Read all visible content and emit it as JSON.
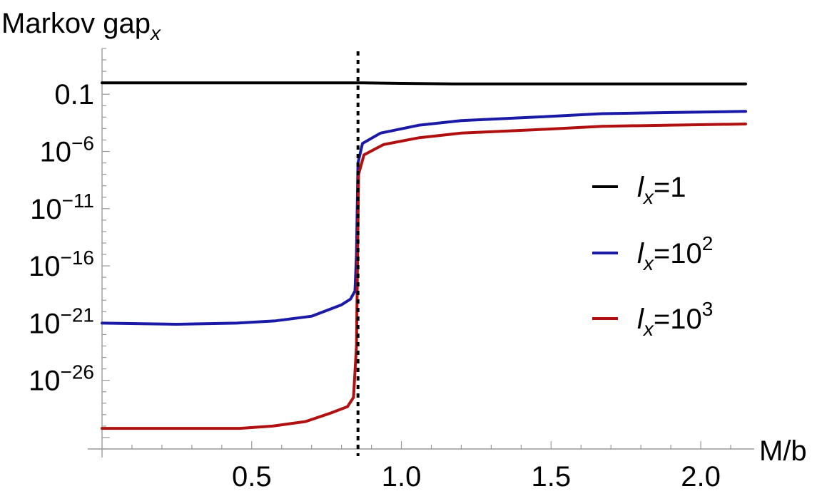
{
  "chart_data": {
    "type": "line",
    "title": "",
    "ylabel": "Markov gap",
    "ylabel_subscript": "x",
    "xlabel": "M/b",
    "y_scale": "log10",
    "x_range": [
      0.0,
      2.15
    ],
    "ylim_log10": [
      -32,
      3
    ],
    "x_ticks": [
      {
        "value": 0.5,
        "label": "0.5"
      },
      {
        "value": 1.0,
        "label": "1.0"
      },
      {
        "value": 1.5,
        "label": "1.5"
      },
      {
        "value": 2.0,
        "label": "2.0"
      }
    ],
    "y_ticks": [
      {
        "log10": -1,
        "mantissa": "0.1",
        "exponent": ""
      },
      {
        "log10": -6,
        "mantissa": "10",
        "exponent": "−6"
      },
      {
        "log10": -11,
        "mantissa": "10",
        "exponent": "−11"
      },
      {
        "log10": -16,
        "mantissa": "10",
        "exponent": "−16"
      },
      {
        "log10": -21,
        "mantissa": "10",
        "exponent": "−21"
      },
      {
        "log10": -26,
        "mantissa": "10",
        "exponent": "−26"
      }
    ],
    "vertical_reference_line": {
      "x": 0.855,
      "style": "dotted"
    },
    "legend_position": "right",
    "series": [
      {
        "name": "l_x=1",
        "legend": {
          "base": "l",
          "sub": "x",
          "eq": "=1",
          "sup": ""
        },
        "color": "#000000",
        "x": [
          0.0,
          0.3,
          0.6,
          0.855,
          1.0,
          1.2,
          1.5,
          1.8,
          2.15
        ],
        "log10y": [
          0.0,
          0.0,
          0.0,
          0.0,
          -0.05,
          -0.1,
          -0.1,
          -0.1,
          -0.1
        ]
      },
      {
        "name": "l_x=10^2",
        "legend": {
          "base": "l",
          "sub": "x",
          "eq": "=10",
          "sup": "2"
        },
        "color": "#1a1aa6",
        "x": [
          0.0,
          0.25,
          0.45,
          0.58,
          0.7,
          0.8,
          0.83,
          0.845,
          0.85,
          0.855,
          0.87,
          0.93,
          1.06,
          1.2,
          1.45,
          1.67,
          1.9,
          2.15
        ],
        "log10y": [
          -21.0,
          -21.1,
          -21.0,
          -20.8,
          -20.4,
          -19.4,
          -18.9,
          -18.2,
          -15.0,
          -7.0,
          -5.3,
          -4.4,
          -3.7,
          -3.3,
          -3.0,
          -2.7,
          -2.6,
          -2.5
        ]
      },
      {
        "name": "l_x=10^3",
        "legend": {
          "base": "l",
          "sub": "x",
          "eq": "=10",
          "sup": "3"
        },
        "color": "#b01010",
        "x": [
          0.0,
          0.3,
          0.46,
          0.57,
          0.68,
          0.76,
          0.82,
          0.84,
          0.85,
          0.857,
          0.875,
          0.94,
          1.06,
          1.2,
          1.45,
          1.67,
          1.9,
          2.15
        ],
        "log10y": [
          -30.2,
          -30.2,
          -30.2,
          -30.0,
          -29.6,
          -28.9,
          -28.3,
          -27.5,
          -23.0,
          -8.0,
          -6.3,
          -5.4,
          -4.8,
          -4.4,
          -4.1,
          -3.8,
          -3.7,
          -3.6
        ]
      }
    ]
  }
}
